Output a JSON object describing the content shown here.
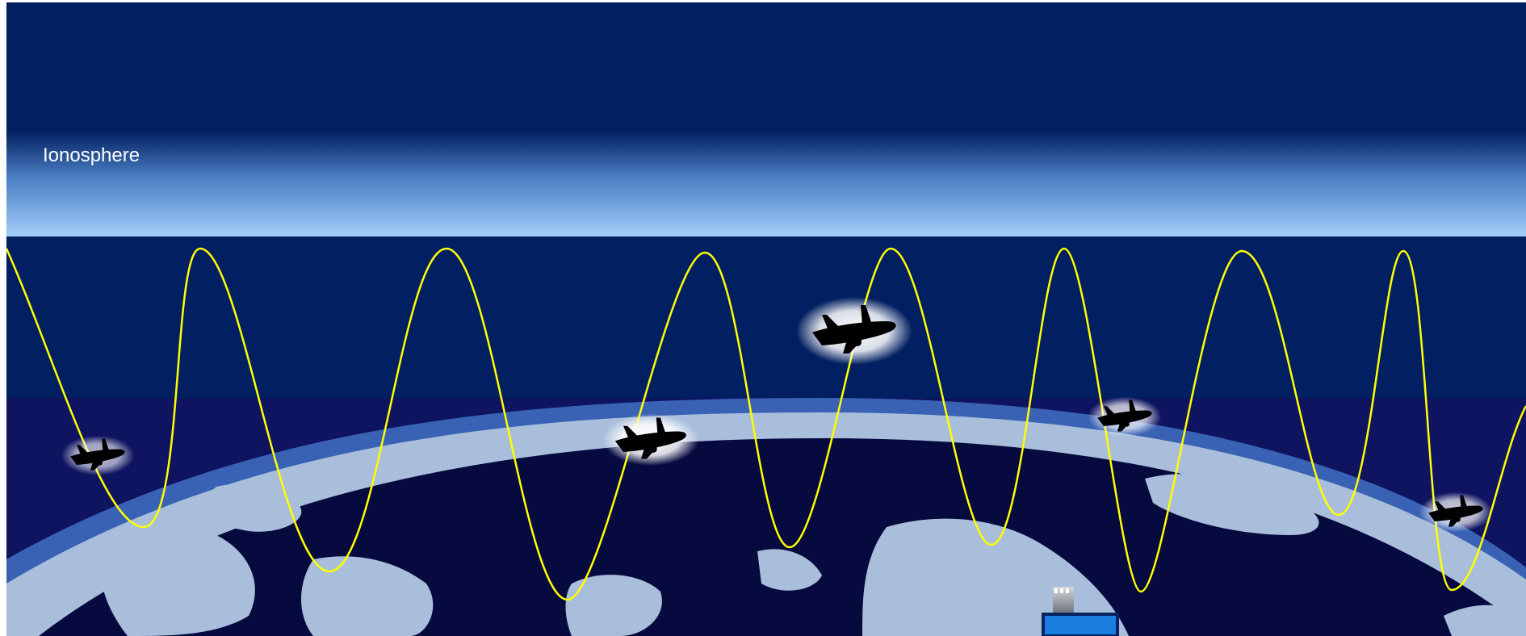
{
  "diagram": {
    "layer_label": "Ionosphere",
    "colors": {
      "sky": "#022061",
      "ionosphere_top": "#022061",
      "ionosphere_bottom": "#9cc8f8",
      "space_lower": "#0f1460",
      "earth_dark": "#060a3e",
      "land": "#a9bedb",
      "atmosphere_rim": "#3a62b4",
      "signal": "#ffff00",
      "aircraft": "#000000",
      "station": "#1a7ee0"
    },
    "icons": [
      "airplane-icon",
      "ground-station-icon"
    ]
  }
}
